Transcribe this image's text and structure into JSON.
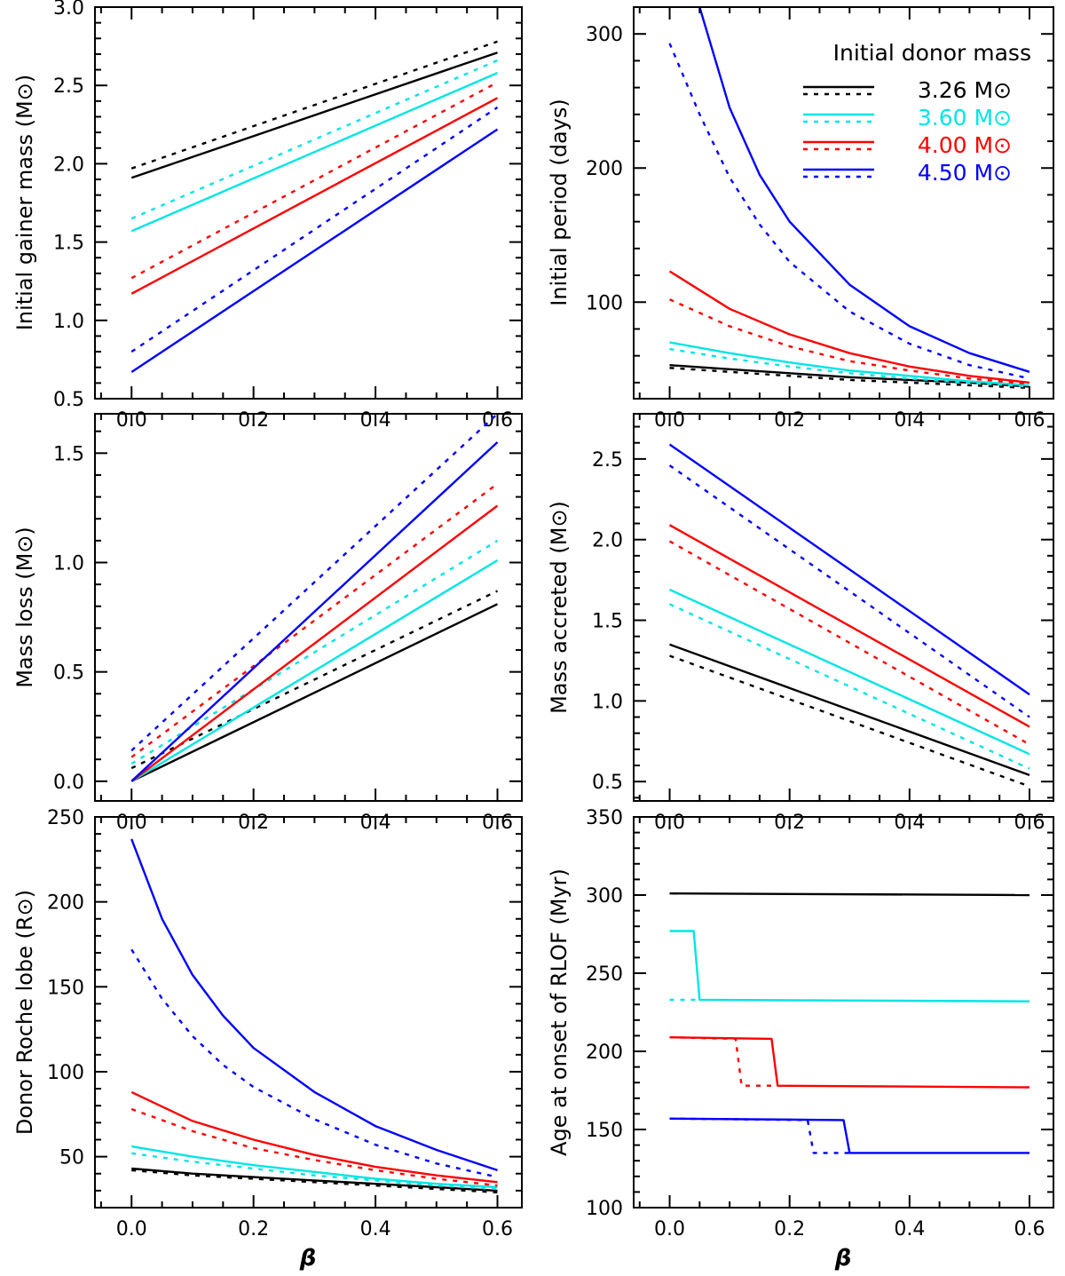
{
  "chart_data": [
    {
      "type": "line",
      "panel": "top-left",
      "xlabel": "β",
      "ylabel": "Initial gainer mass (M⊙)",
      "xlim": [
        -0.06,
        0.64
      ],
      "ylim": [
        0.5,
        3.0
      ],
      "xticks": [
        "0.0",
        "0.2",
        "0.4",
        "0.6"
      ],
      "yticks": [
        "0.5",
        "1.0",
        "1.5",
        "2.0",
        "2.5",
        "3.0"
      ],
      "series": [
        {
          "color": "#000000",
          "style": "solid",
          "x": [
            0,
            0.6
          ],
          "y": [
            1.91,
            2.71
          ]
        },
        {
          "color": "#000000",
          "style": "dotted",
          "x": [
            0,
            0.6
          ],
          "y": [
            1.97,
            2.78
          ]
        },
        {
          "color": "#00e5e5",
          "style": "solid",
          "x": [
            0,
            0.6
          ],
          "y": [
            1.57,
            2.58
          ]
        },
        {
          "color": "#00e5e5",
          "style": "dotted",
          "x": [
            0,
            0.6
          ],
          "y": [
            1.65,
            2.66
          ]
        },
        {
          "color": "#ff0000",
          "style": "solid",
          "x": [
            0,
            0.6
          ],
          "y": [
            1.17,
            2.42
          ]
        },
        {
          "color": "#ff0000",
          "style": "dotted",
          "x": [
            0,
            0.6
          ],
          "y": [
            1.27,
            2.52
          ]
        },
        {
          "color": "#0000ff",
          "style": "solid",
          "x": [
            0,
            0.6
          ],
          "y": [
            0.67,
            2.22
          ]
        },
        {
          "color": "#0000ff",
          "style": "dotted",
          "x": [
            0,
            0.6
          ],
          "y": [
            0.8,
            2.36
          ]
        }
      ]
    },
    {
      "type": "line",
      "panel": "top-right",
      "xlabel": "",
      "ylabel": "Initial period (days)",
      "xlim": [
        -0.06,
        0.64
      ],
      "ylim": [
        28,
        320
      ],
      "xticks": [
        "0.0",
        "0.2",
        "0.4",
        "0.6"
      ],
      "yticks": [
        "100",
        "200",
        "300"
      ],
      "legend": {
        "title": "Initial donor mass",
        "position": "top-right",
        "entries": [
          {
            "label": "3.26 M⊙",
            "color": "#000000"
          },
          {
            "label": "3.60 M⊙",
            "color": "#00e5e5"
          },
          {
            "label": "4.00 M⊙",
            "color": "#ff0000"
          },
          {
            "label": "4.50 M⊙",
            "color": "#0000ff"
          }
        ]
      },
      "series": [
        {
          "color": "#000000",
          "style": "solid",
          "x": [
            0,
            0.1,
            0.2,
            0.3,
            0.4,
            0.5,
            0.6
          ],
          "y": [
            53,
            50,
            47,
            44,
            42,
            40,
            37
          ]
        },
        {
          "color": "#000000",
          "style": "dotted",
          "x": [
            0,
            0.1,
            0.2,
            0.3,
            0.4,
            0.5,
            0.6
          ],
          "y": [
            51,
            48,
            45,
            42,
            40,
            38,
            36
          ]
        },
        {
          "color": "#00e5e5",
          "style": "solid",
          "x": [
            0,
            0.1,
            0.2,
            0.3,
            0.4,
            0.5,
            0.6
          ],
          "y": [
            70,
            62,
            55,
            49,
            45,
            41,
            38
          ]
        },
        {
          "color": "#00e5e5",
          "style": "dotted",
          "x": [
            0,
            0.1,
            0.2,
            0.3,
            0.4,
            0.5,
            0.6
          ],
          "y": [
            65,
            58,
            52,
            47,
            43,
            40,
            37
          ]
        },
        {
          "color": "#ff0000",
          "style": "solid",
          "x": [
            0,
            0.1,
            0.2,
            0.3,
            0.4,
            0.5,
            0.6
          ],
          "y": [
            123,
            95,
            76,
            62,
            52,
            45,
            40
          ]
        },
        {
          "color": "#ff0000",
          "style": "dotted",
          "x": [
            0,
            0.1,
            0.2,
            0.3,
            0.4,
            0.5,
            0.6
          ],
          "y": [
            102,
            82,
            67,
            56,
            49,
            43,
            39
          ]
        },
        {
          "color": "#0000ff",
          "style": "solid",
          "x": [
            0.05,
            0.1,
            0.15,
            0.2,
            0.3,
            0.4,
            0.5,
            0.6
          ],
          "y": [
            320,
            245,
            195,
            160,
            113,
            82,
            62,
            48
          ]
        },
        {
          "color": "#0000ff",
          "style": "dotted",
          "x": [
            0,
            0.05,
            0.1,
            0.15,
            0.2,
            0.3,
            0.4,
            0.5,
            0.6
          ],
          "y": [
            293,
            240,
            193,
            158,
            130,
            93,
            69,
            53,
            43
          ]
        }
      ]
    },
    {
      "type": "line",
      "panel": "middle-left",
      "xlabel": "",
      "ylabel": "Mass loss (M⊙)",
      "xlim": [
        -0.06,
        0.64
      ],
      "ylim": [
        -0.09,
        1.68
      ],
      "xticks": [
        "0.0",
        "0.2",
        "0.4",
        "0.6"
      ],
      "yticks": [
        "0.0",
        "0.5",
        "1.0",
        "1.5"
      ],
      "series": [
        {
          "color": "#000000",
          "style": "solid",
          "x": [
            0,
            0.6
          ],
          "y": [
            0.0,
            0.81
          ]
        },
        {
          "color": "#000000",
          "style": "dotted",
          "x": [
            0,
            0.6
          ],
          "y": [
            0.06,
            0.87
          ]
        },
        {
          "color": "#00e5e5",
          "style": "solid",
          "x": [
            0,
            0.6
          ],
          "y": [
            0.0,
            1.01
          ]
        },
        {
          "color": "#00e5e5",
          "style": "dotted",
          "x": [
            0,
            0.6
          ],
          "y": [
            0.08,
            1.1
          ]
        },
        {
          "color": "#ff0000",
          "style": "solid",
          "x": [
            0,
            0.6
          ],
          "y": [
            0.0,
            1.26
          ]
        },
        {
          "color": "#ff0000",
          "style": "dotted",
          "x": [
            0,
            0.6
          ],
          "y": [
            0.11,
            1.36
          ]
        },
        {
          "color": "#0000ff",
          "style": "solid",
          "x": [
            0,
            0.6
          ],
          "y": [
            0.0,
            1.55
          ]
        },
        {
          "color": "#0000ff",
          "style": "dotted",
          "x": [
            0,
            0.6
          ],
          "y": [
            0.14,
            1.68
          ]
        }
      ]
    },
    {
      "type": "line",
      "panel": "middle-right",
      "xlabel": "",
      "ylabel": "Mass accreted (M⊙)",
      "xlim": [
        -0.06,
        0.64
      ],
      "ylim": [
        0.38,
        2.78
      ],
      "xticks": [
        "0.0",
        "0.2",
        "0.4",
        "0.6"
      ],
      "yticks": [
        "0.5",
        "1.0",
        "1.5",
        "2.0",
        "2.5"
      ],
      "series": [
        {
          "color": "#000000",
          "style": "solid",
          "x": [
            0,
            0.6
          ],
          "y": [
            1.35,
            0.54
          ]
        },
        {
          "color": "#000000",
          "style": "dotted",
          "x": [
            0,
            0.6
          ],
          "y": [
            1.28,
            0.47
          ]
        },
        {
          "color": "#00e5e5",
          "style": "solid",
          "x": [
            0,
            0.6
          ],
          "y": [
            1.69,
            0.67
          ]
        },
        {
          "color": "#00e5e5",
          "style": "dotted",
          "x": [
            0,
            0.6
          ],
          "y": [
            1.6,
            0.58
          ]
        },
        {
          "color": "#ff0000",
          "style": "solid",
          "x": [
            0,
            0.6
          ],
          "y": [
            2.09,
            0.84
          ]
        },
        {
          "color": "#ff0000",
          "style": "dotted",
          "x": [
            0,
            0.6
          ],
          "y": [
            1.99,
            0.73
          ]
        },
        {
          "color": "#0000ff",
          "style": "solid",
          "x": [
            0,
            0.6
          ],
          "y": [
            2.59,
            1.04
          ]
        },
        {
          "color": "#0000ff",
          "style": "dotted",
          "x": [
            0,
            0.6
          ],
          "y": [
            2.46,
            0.9
          ]
        }
      ]
    },
    {
      "type": "line",
      "panel": "bottom-left",
      "xlabel": "β",
      "ylabel": "Donor Roche lobe (R⊙)",
      "xlim": [
        -0.06,
        0.64
      ],
      "ylim": [
        20,
        250
      ],
      "xticks": [
        "0.0",
        "0.2",
        "0.4",
        "0.6"
      ],
      "yticks": [
        "50",
        "100",
        "150",
        "200",
        "250"
      ],
      "series": [
        {
          "color": "#000000",
          "style": "solid",
          "x": [
            0,
            0.1,
            0.2,
            0.3,
            0.4,
            0.5,
            0.6
          ],
          "y": [
            43,
            40,
            38,
            36,
            34,
            32,
            30
          ]
        },
        {
          "color": "#000000",
          "style": "dotted",
          "x": [
            0,
            0.1,
            0.2,
            0.3,
            0.4,
            0.5,
            0.6
          ],
          "y": [
            42,
            39,
            37,
            35,
            33,
            31,
            29
          ]
        },
        {
          "color": "#00e5e5",
          "style": "solid",
          "x": [
            0,
            0.1,
            0.2,
            0.3,
            0.4,
            0.5,
            0.6
          ],
          "y": [
            56,
            50,
            45,
            41,
            37,
            34,
            32
          ]
        },
        {
          "color": "#00e5e5",
          "style": "dotted",
          "x": [
            0,
            0.1,
            0.2,
            0.3,
            0.4,
            0.5,
            0.6
          ],
          "y": [
            52,
            47,
            43,
            39,
            36,
            33,
            31
          ]
        },
        {
          "color": "#ff0000",
          "style": "solid",
          "x": [
            0,
            0.1,
            0.2,
            0.3,
            0.4,
            0.5,
            0.6
          ],
          "y": [
            88,
            71,
            60,
            51,
            44,
            39,
            35
          ]
        },
        {
          "color": "#ff0000",
          "style": "dotted",
          "x": [
            0,
            0.1,
            0.2,
            0.3,
            0.4,
            0.5,
            0.6
          ],
          "y": [
            78,
            65,
            55,
            48,
            42,
            37,
            33
          ]
        },
        {
          "color": "#0000ff",
          "style": "solid",
          "x": [
            0,
            0.05,
            0.1,
            0.15,
            0.2,
            0.3,
            0.4,
            0.5,
            0.6
          ],
          "y": [
            237,
            190,
            157,
            133,
            114,
            88,
            68,
            54,
            42
          ]
        },
        {
          "color": "#0000ff",
          "style": "dotted",
          "x": [
            0,
            0.05,
            0.1,
            0.15,
            0.2,
            0.3,
            0.4,
            0.5,
            0.6
          ],
          "y": [
            172,
            143,
            121,
            104,
            91,
            72,
            57,
            46,
            38
          ]
        }
      ]
    },
    {
      "type": "line",
      "panel": "bottom-right",
      "xlabel": "β",
      "ylabel": "Age at onset of RLOF (Myr)",
      "xlim": [
        -0.06,
        0.64
      ],
      "ylim": [
        100,
        350
      ],
      "xticks": [
        "0.0",
        "0.2",
        "0.4",
        "0.6"
      ],
      "yticks": [
        "100",
        "150",
        "200",
        "250",
        "300",
        "350"
      ],
      "series": [
        {
          "color": "#000000",
          "style": "solid",
          "x": [
            0,
            0.6
          ],
          "y": [
            301,
            300
          ]
        },
        {
          "color": "#00e5e5",
          "style": "solid",
          "x": [
            0,
            0.04,
            0.05,
            0.6
          ],
          "y": [
            277,
            277,
            233,
            232
          ]
        },
        {
          "color": "#00e5e5",
          "style": "dotted",
          "x": [
            0,
            0.05
          ],
          "y": [
            233,
            233
          ]
        },
        {
          "color": "#ff0000",
          "style": "solid",
          "x": [
            0,
            0.17,
            0.18,
            0.6
          ],
          "y": [
            209,
            208,
            178,
            177
          ]
        },
        {
          "color": "#ff0000",
          "style": "dotted",
          "x": [
            0,
            0.11,
            0.12,
            0.18
          ],
          "y": [
            209,
            208,
            178,
            178
          ]
        },
        {
          "color": "#0000ff",
          "style": "solid",
          "x": [
            0,
            0.29,
            0.3,
            0.6
          ],
          "y": [
            157,
            156,
            135,
            135
          ]
        },
        {
          "color": "#0000ff",
          "style": "dotted",
          "x": [
            0,
            0.23,
            0.24,
            0.3
          ],
          "y": [
            157,
            156,
            135,
            135
          ]
        }
      ]
    }
  ]
}
